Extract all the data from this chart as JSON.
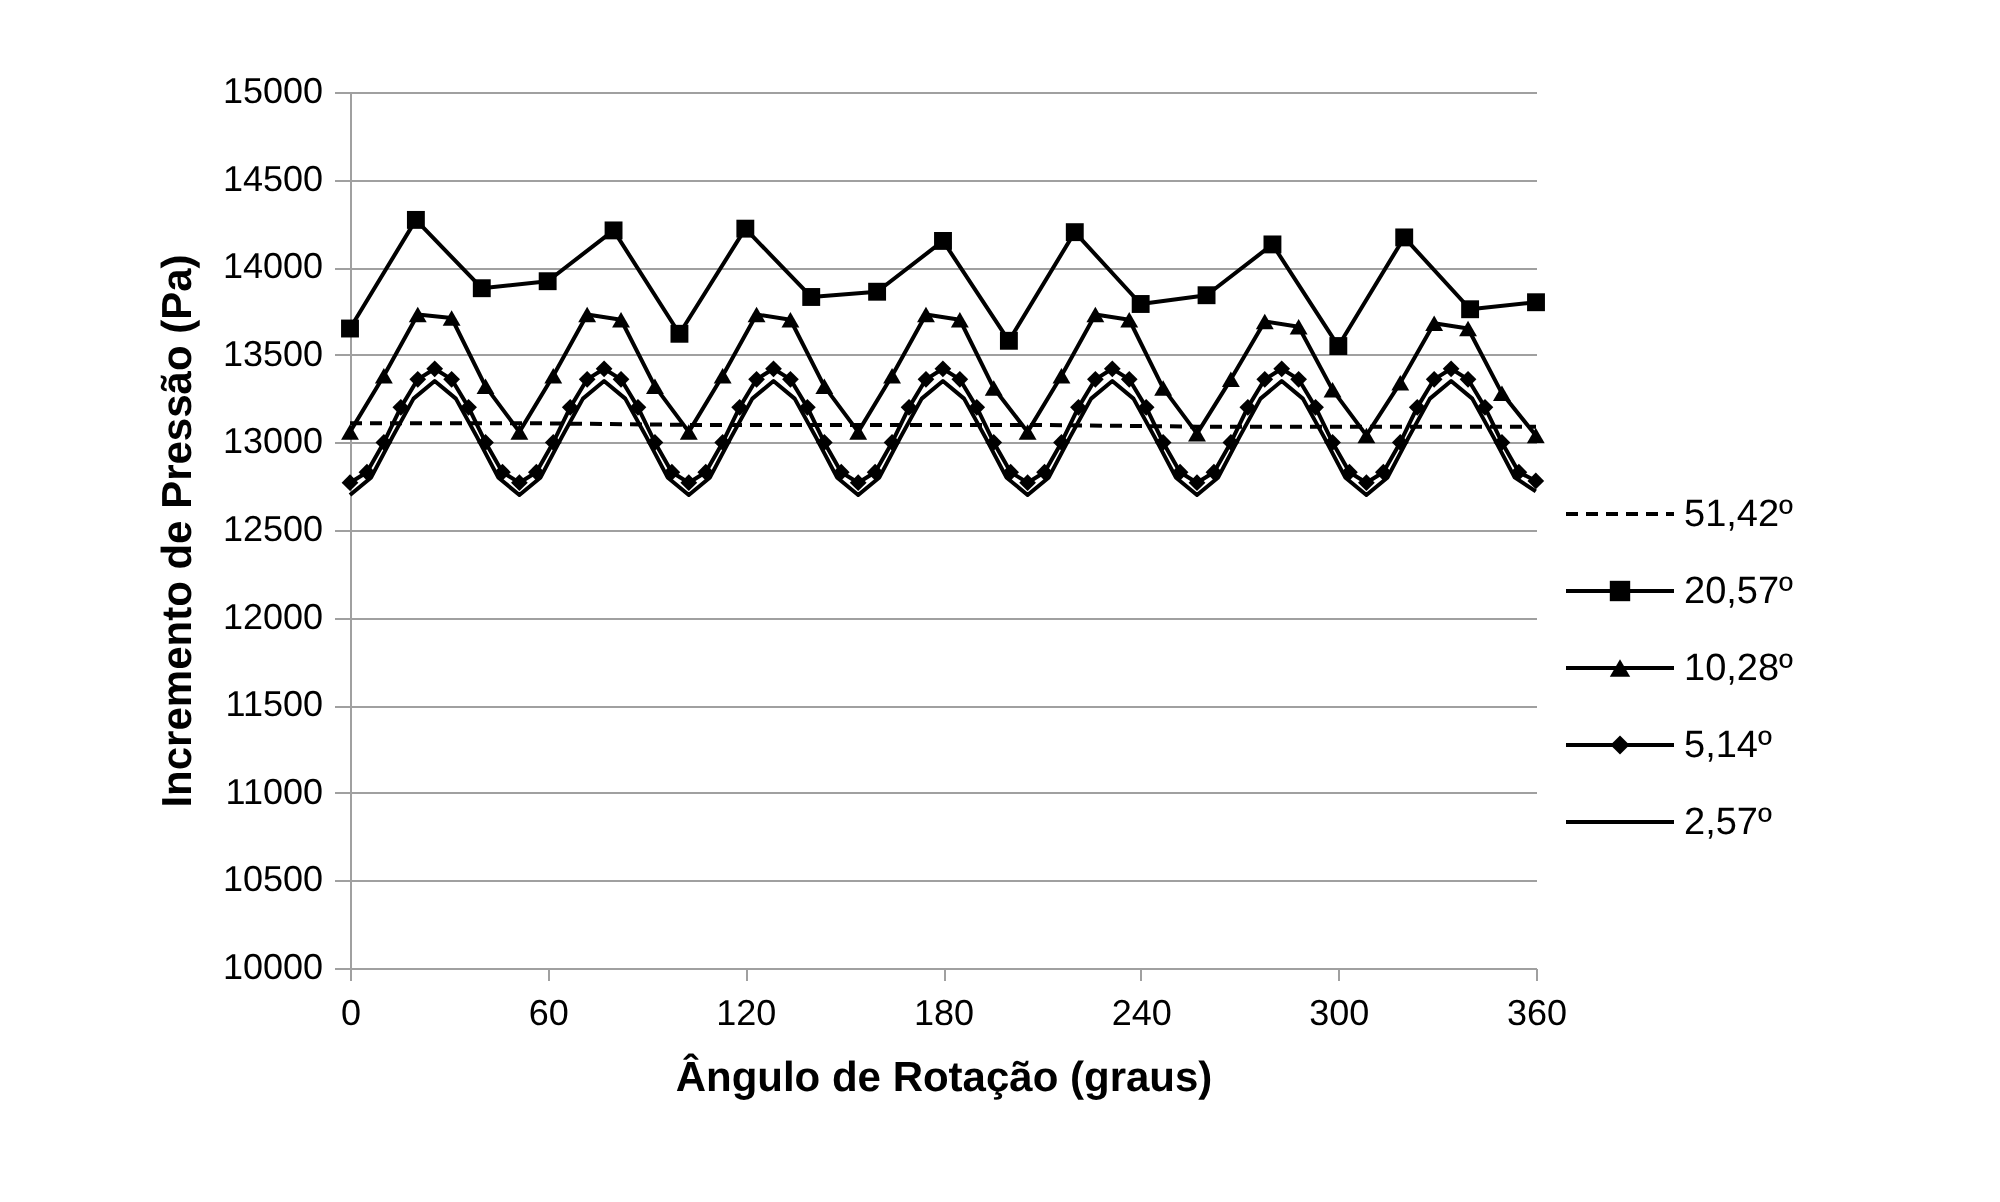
{
  "chart_data": {
    "type": "line",
    "xlabel": "Ângulo de Rotação (graus)",
    "ylabel": "Incremento de Pressão (Pa)",
    "xlim": [
      0,
      360
    ],
    "xticks": [
      0,
      60,
      120,
      180,
      240,
      300,
      360
    ],
    "ylim": [
      10000,
      15000
    ],
    "yticks": [
      10000,
      10500,
      11000,
      11500,
      12000,
      12500,
      13000,
      13500,
      14000,
      14500,
      15000
    ],
    "grid": "y",
    "legend": "right",
    "series": [
      {
        "name": "51,42º",
        "color": "#000000",
        "marker": "none",
        "line_style": "dashed",
        "x": [
          0,
          51.42,
          102.84,
          154.26,
          205.68,
          257.1,
          308.52,
          360
        ],
        "values": [
          13110,
          13110,
          13100,
          13100,
          13100,
          13090,
          13090,
          13090
        ]
      },
      {
        "name": "20,57º",
        "color": "#000000",
        "marker": "square",
        "line_style": "solid",
        "x": [
          0,
          20,
          40,
          60,
          80,
          100,
          120,
          140,
          160,
          180,
          200,
          220,
          240,
          260,
          280,
          300,
          320,
          340,
          360
        ],
        "values": [
          13650,
          14270,
          13880,
          13920,
          14210,
          13620,
          14220,
          13830,
          13860,
          14150,
          13580,
          14200,
          13790,
          13840,
          14130,
          13550,
          14170,
          13760,
          13800
        ]
      },
      {
        "name": "10,28º",
        "color": "#000000",
        "marker": "triangle",
        "line_style": "solid",
        "x": [
          0,
          10.28,
          20.57,
          30.85,
          41.14,
          51.42,
          61.7,
          71.99,
          82.27,
          92.56,
          102.84,
          113.12,
          123.41,
          133.69,
          143.98,
          154.26,
          164.54,
          174.83,
          185.11,
          195.4,
          205.68,
          215.96,
          226.25,
          236.53,
          246.82,
          257.1,
          267.38,
          277.67,
          287.95,
          298.24,
          308.52,
          318.8,
          329.09,
          339.37,
          349.66,
          359.94
        ],
        "values": [
          13060,
          13380,
          13730,
          13710,
          13320,
          13060,
          13380,
          13730,
          13700,
          13320,
          13060,
          13380,
          13730,
          13700,
          13320,
          13060,
          13380,
          13730,
          13700,
          13310,
          13060,
          13380,
          13730,
          13700,
          13310,
          13050,
          13360,
          13690,
          13660,
          13300,
          13040,
          13340,
          13680,
          13650,
          13280,
          13040
        ]
      },
      {
        "name": "5,14º",
        "color": "#000000",
        "marker": "diamond",
        "line_style": "solid",
        "x": [
          0,
          5.14,
          10.28,
          15.43,
          20.57,
          25.71,
          30.85,
          35.99,
          41.14,
          46.28,
          51.42,
          56.56,
          61.7,
          66.85,
          71.99,
          77.13,
          82.27,
          87.41,
          92.56,
          97.7,
          102.84,
          107.98,
          113.12,
          118.27,
          123.41,
          128.55,
          133.69,
          138.83,
          143.98,
          149.12,
          154.26,
          159.4,
          164.54,
          169.69,
          174.83,
          179.97,
          185.11,
          190.25,
          195.4,
          200.54,
          205.68,
          210.82,
          215.96,
          221.11,
          226.25,
          231.39,
          236.53,
          241.67,
          246.82,
          251.96,
          257.1,
          262.24,
          267.38,
          272.53,
          277.67,
          282.81,
          287.95,
          293.09,
          298.24,
          303.38,
          308.52,
          313.66,
          318.8,
          323.95,
          329.09,
          334.23,
          339.37,
          344.51,
          349.66,
          354.8,
          359.94
        ],
        "values": [
          12770,
          12830,
          13000,
          13200,
          13360,
          13420,
          13360,
          13200,
          13000,
          12830,
          12770,
          12830,
          13000,
          13200,
          13360,
          13420,
          13360,
          13200,
          13000,
          12830,
          12770,
          12830,
          13000,
          13200,
          13360,
          13420,
          13360,
          13200,
          13000,
          12830,
          12770,
          12830,
          13000,
          13200,
          13360,
          13420,
          13360,
          13200,
          13000,
          12830,
          12770,
          12830,
          13000,
          13200,
          13360,
          13420,
          13360,
          13200,
          13000,
          12830,
          12770,
          12830,
          13000,
          13200,
          13360,
          13420,
          13360,
          13200,
          13000,
          12830,
          12770,
          12830,
          13000,
          13200,
          13360,
          13420,
          13360,
          13200,
          13000,
          12830,
          12780
        ]
      },
      {
        "name": "2,57º",
        "color": "#000000",
        "marker": "none",
        "line_style": "solid",
        "x": [
          0,
          6.43,
          12.86,
          19.28,
          25.71,
          32.14,
          38.57,
          44.99,
          51.42,
          57.85,
          64.28,
          70.7,
          77.13,
          83.56,
          89.99,
          96.41,
          102.84,
          109.27,
          115.7,
          122.12,
          128.55,
          134.98,
          141.41,
          147.83,
          154.26,
          160.69,
          167.12,
          173.54,
          179.97,
          186.4,
          192.83,
          199.25,
          205.68,
          212.11,
          218.54,
          224.96,
          231.39,
          237.82,
          244.25,
          250.67,
          257.1,
          263.53,
          269.96,
          276.38,
          282.81,
          289.24,
          295.67,
          302.09,
          308.52,
          314.95,
          321.38,
          327.8,
          334.23,
          340.66,
          347.09,
          353.51,
          359.94
        ],
        "values": [
          12700,
          12800,
          13030,
          13250,
          13350,
          13250,
          13030,
          12800,
          12700,
          12800,
          13030,
          13250,
          13350,
          13250,
          13030,
          12800,
          12700,
          12800,
          13030,
          13250,
          13350,
          13250,
          13030,
          12800,
          12700,
          12800,
          13030,
          13250,
          13350,
          13250,
          13030,
          12800,
          12700,
          12800,
          13030,
          13250,
          13350,
          13250,
          13030,
          12800,
          12700,
          12800,
          13030,
          13250,
          13350,
          13250,
          13030,
          12800,
          12700,
          12800,
          13030,
          13250,
          13350,
          13250,
          13030,
          12800,
          12720
        ]
      }
    ]
  }
}
